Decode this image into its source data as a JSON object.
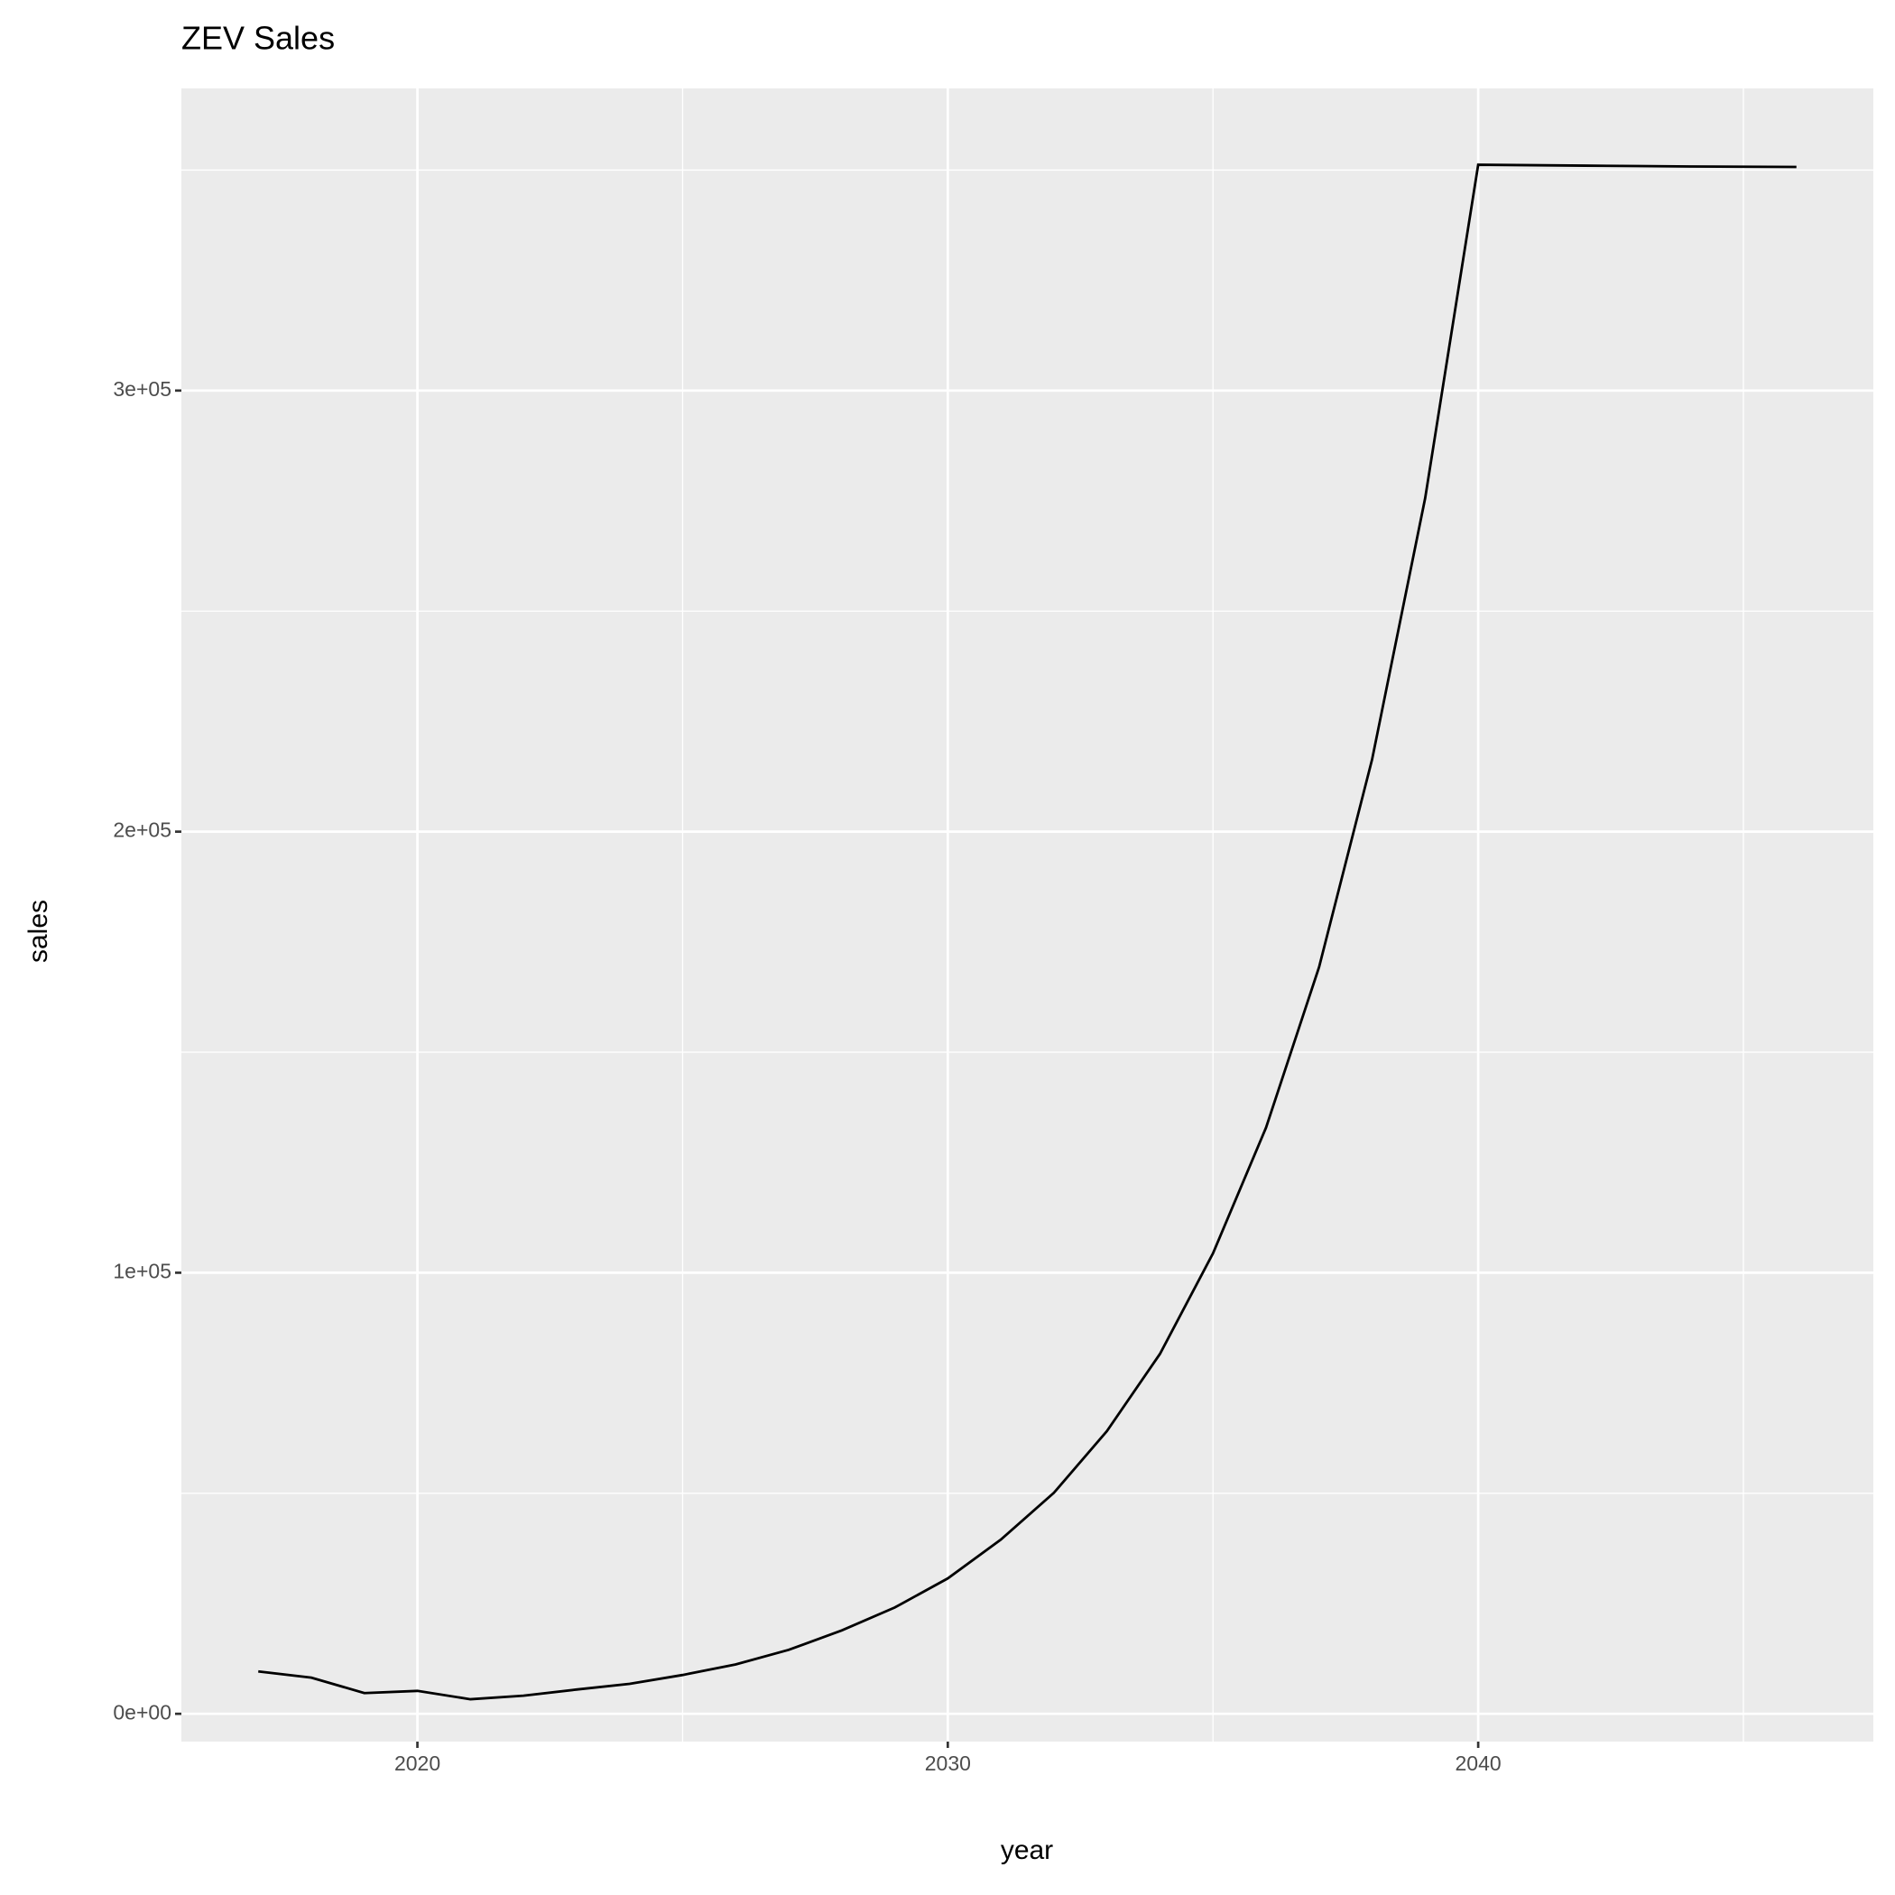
{
  "chart_data": {
    "type": "line",
    "title": "ZEV Sales",
    "x_label": "year",
    "y_label": "sales",
    "x": [
      2017,
      2018,
      2019,
      2020,
      2021,
      2022,
      2023,
      2024,
      2025,
      2026,
      2027,
      2028,
      2029,
      2030,
      2031,
      2032,
      2033,
      2034,
      2035,
      2036,
      2037,
      2038,
      2039,
      2040,
      2041,
      2042,
      2043,
      2044,
      2045,
      2046
    ],
    "series": [
      {
        "color": "#000000",
        "values": [
          9600,
          8200,
          4700,
          5200,
          3300,
          4100,
          5500,
          6800,
          8800,
          11200,
          14500,
          18900,
          24100,
          30700,
          39500,
          50100,
          64100,
          81600,
          104400,
          132900,
          169300,
          216400,
          275600,
          351200,
          351100,
          351000,
          350900,
          350800,
          350750,
          350700
        ]
      }
    ],
    "xlim": [
      2015.55,
      2047.45
    ],
    "xticks": [
      2020,
      2030,
      2040
    ],
    "ylim": [
      -6300,
      368500
    ],
    "yticks": [
      {
        "value": 0,
        "label": "0e+00"
      },
      {
        "value": 100000,
        "label": "1e+05"
      },
      {
        "value": 200000,
        "label": "2e+05"
      },
      {
        "value": 300000,
        "label": "3e+05"
      }
    ],
    "grid": true
  }
}
